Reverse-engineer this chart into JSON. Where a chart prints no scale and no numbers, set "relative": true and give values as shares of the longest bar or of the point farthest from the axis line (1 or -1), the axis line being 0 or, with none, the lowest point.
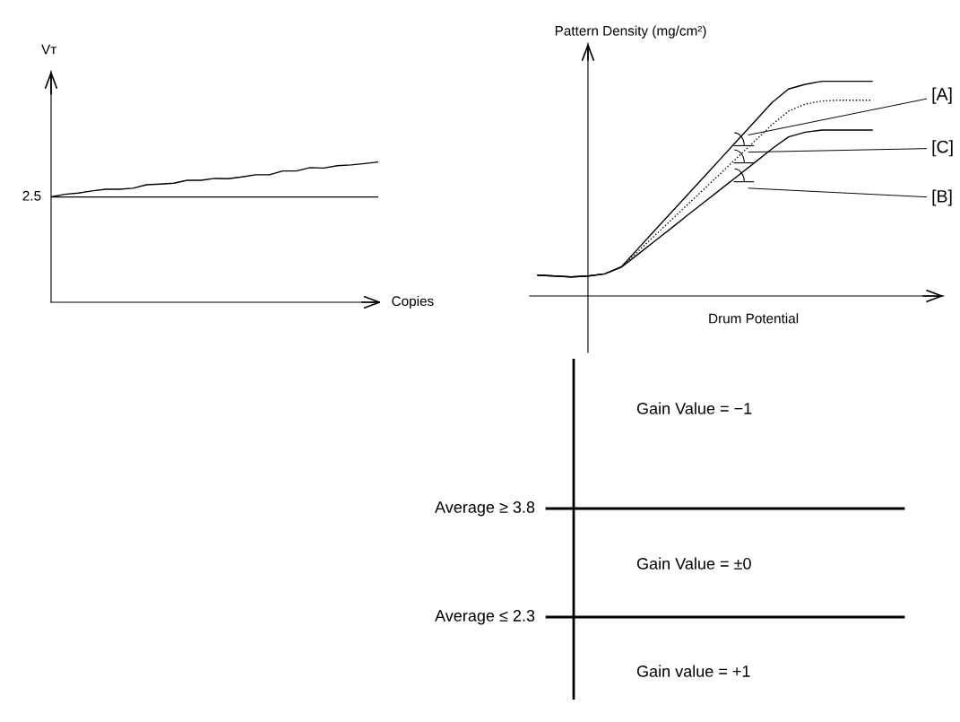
{
  "chart_data": [
    {
      "type": "line",
      "relative": true,
      "xlabel": "Copies",
      "ylabel": "Vᴛ",
      "annotations": [
        "2.5"
      ],
      "categories": [
        null,
        null,
        null,
        null,
        null,
        null,
        null,
        null,
        null,
        null,
        null,
        null,
        null,
        null,
        null,
        null,
        null,
        null,
        null,
        null,
        null,
        null,
        null,
        null,
        null
      ],
      "series": [
        {
          "color": "#000000",
          "values": [
            0.751,
            0.77,
            0.779,
            0.794,
            0.806,
            0.806,
            0.813,
            0.838,
            0.843,
            0.849,
            0.87,
            0.87,
            0.883,
            0.881,
            0.894,
            0.909,
            0.909,
            0.936,
            0.936,
            0.96,
            0.957,
            0.974,
            0.979,
            0.989,
            1.0
          ]
        },
        {
          "color": "#000000",
          "values": [
            0.751,
            0.751,
            0.751,
            0.751,
            0.751,
            0.751,
            0.751,
            0.751,
            0.751,
            0.751,
            0.751,
            0.751,
            0.751,
            0.751,
            0.751,
            0.751,
            0.751,
            0.751,
            0.751,
            0.751,
            0.751,
            0.751,
            0.751,
            0.751,
            0.751
          ]
        }
      ]
    },
    {
      "type": "line",
      "relative": true,
      "xlabel": "Drum Potential",
      "ylabel": "Pattern Density (mg/cm²)",
      "categories": [
        null,
        null,
        null,
        null,
        null,
        null,
        null,
        null,
        null,
        null,
        null,
        null,
        null,
        null,
        null,
        null,
        null,
        null,
        null,
        null,
        null
      ],
      "series": [
        {
          "color": "#000000",
          "line_style": "solid",
          "values": [
            0.097,
            0.093,
            0.089,
            0.093,
            0.103,
            0.136,
            0.221,
            0.306,
            0.391,
            0.475,
            0.56,
            0.645,
            0.73,
            0.815,
            0.9,
            0.964,
            0.986,
            1.0,
            1.0,
            1.0,
            1.0
          ]
        },
        {
          "color": "#000000",
          "line_style": "dotted",
          "values": [
            0.097,
            0.093,
            0.089,
            0.093,
            0.103,
            0.135,
            0.208,
            0.282,
            0.355,
            0.429,
            0.502,
            0.576,
            0.65,
            0.723,
            0.797,
            0.861,
            0.894,
            0.908,
            0.912,
            0.912,
            0.912
          ]
        },
        {
          "color": "#000000",
          "line_style": "solid",
          "values": [
            0.097,
            0.093,
            0.089,
            0.093,
            0.103,
            0.134,
            0.195,
            0.256,
            0.317,
            0.379,
            0.44,
            0.501,
            0.562,
            0.623,
            0.685,
            0.741,
            0.763,
            0.773,
            0.773,
            0.773,
            0.773
          ]
        }
      ],
      "annotations": [
        "[A]",
        "[C]",
        "[B]"
      ]
    },
    {
      "type": "other",
      "annotations": [
        "Gain Value = −1",
        "Average ≥ 3.8",
        "Gain Value = ±0",
        "Average ≤ 2.3",
        "Gain value = +1"
      ]
    }
  ]
}
